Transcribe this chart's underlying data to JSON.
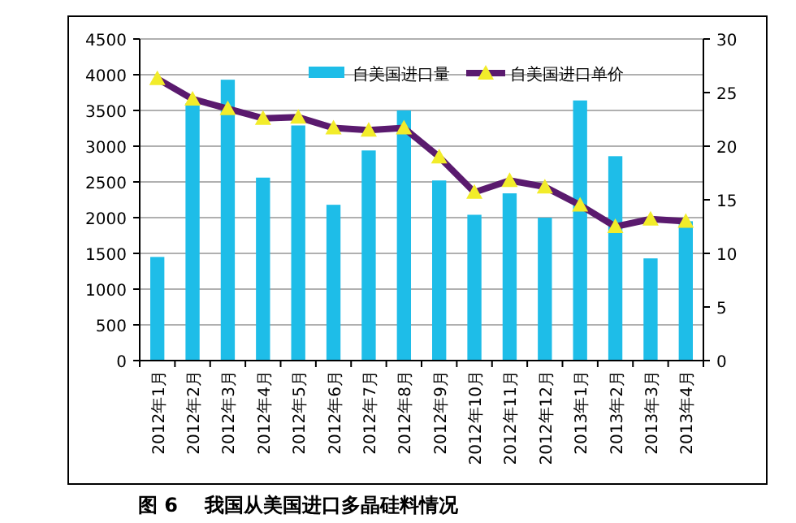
{
  "chart_data": {
    "type": "bar",
    "title": "图 6    我国从美国进口多晶硅料情况",
    "categories": [
      "2012年1月",
      "2012年2月",
      "2012年3月",
      "2012年4月",
      "2012年5月",
      "2012年6月",
      "2012年7月",
      "2012年8月",
      "2012年9月",
      "2012年10月",
      "2012年11月",
      "2012年12月",
      "2013年1月",
      "2013年2月",
      "2013年3月",
      "2013年4月"
    ],
    "series": [
      {
        "name": "自美国进口量",
        "color": "#1ebde8",
        "values": [
          1450,
          3600,
          3930,
          2560,
          3290,
          2180,
          2940,
          3500,
          2520,
          2040,
          2340,
          2000,
          3640,
          2860,
          1430,
          1950
        ]
      },
      {
        "name": "自美国进口单价",
        "type": "line",
        "axis": "y2",
        "color": "#5a1a6e",
        "marker": "triangle",
        "values": [
          26.3,
          24.4,
          23.5,
          22.6,
          22.7,
          21.7,
          21.5,
          21.7,
          19.0,
          15.7,
          16.8,
          16.2,
          14.5,
          12.5,
          13.2,
          13.0
        ]
      }
    ],
    "ylim": [
      0,
      4500
    ],
    "yticks": [
      0,
      500,
      1000,
      1500,
      2000,
      2500,
      3000,
      3500,
      4000,
      4500
    ],
    "y2lim": [
      0,
      30
    ],
    "y2ticks": [
      0,
      5,
      10,
      15,
      20,
      25,
      30
    ],
    "grid": "y",
    "legend": "top"
  }
}
